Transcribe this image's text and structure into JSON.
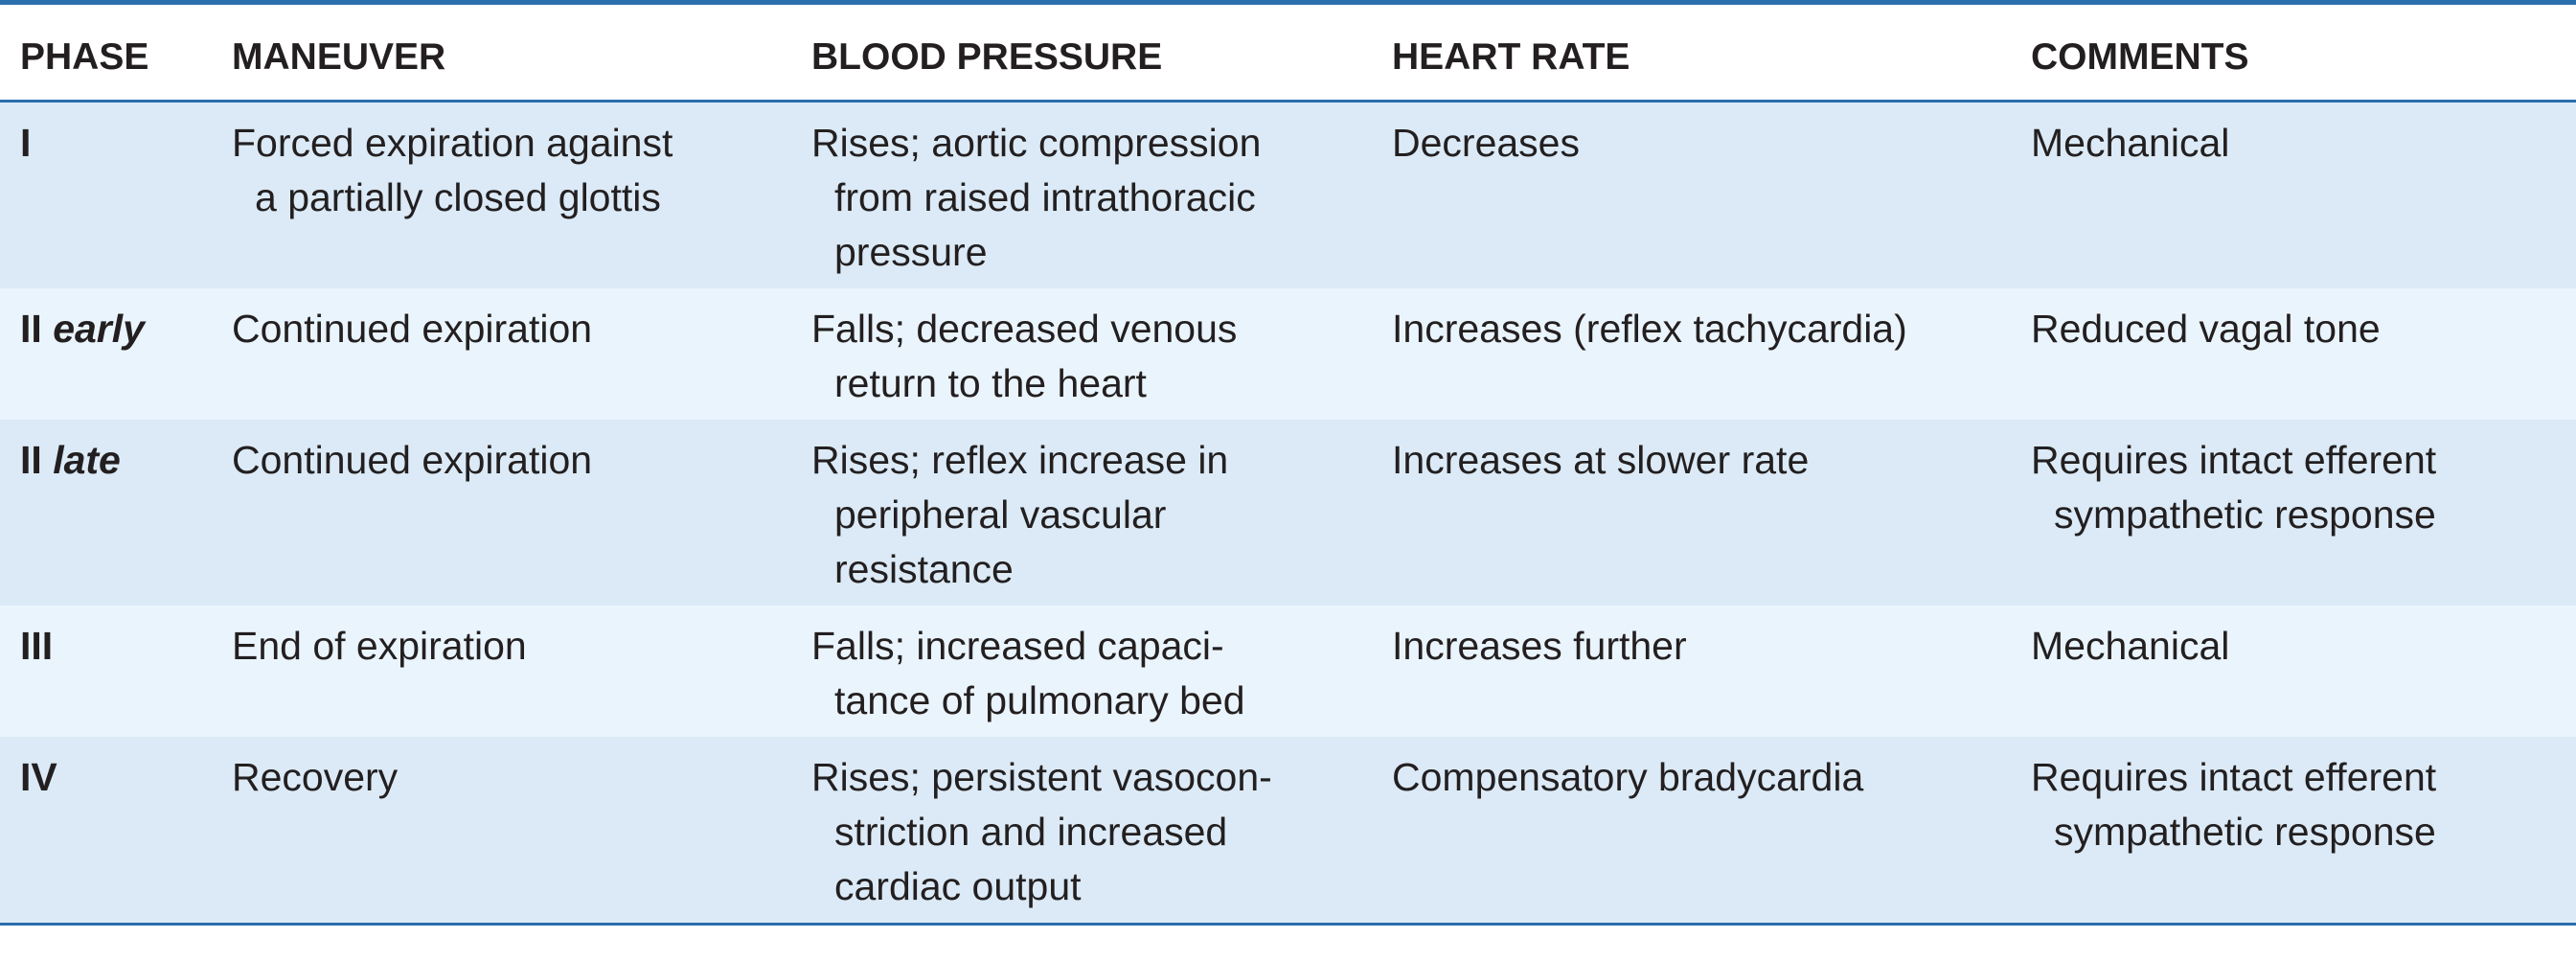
{
  "table": {
    "columns": [
      "PHASE",
      "MANEUVER",
      "BLOOD PRESSURE",
      "HEART RATE",
      "COMMENTS"
    ],
    "rows": [
      {
        "phase": [
          "I"
        ],
        "cells": [
          [
            "Forced expiration against",
            "a partially closed glottis"
          ],
          [
            "Rises; aortic compression",
            "from raised intrathoracic",
            "pressure"
          ],
          [
            "Decreases"
          ],
          [
            "Mechanical"
          ]
        ]
      },
      {
        "phase": [
          "II",
          "early"
        ],
        "cells": [
          [
            "Continued expiration"
          ],
          [
            "Falls; decreased venous",
            "return to the heart"
          ],
          [
            "Increases (reflex tachycardia)"
          ],
          [
            "Reduced vagal tone"
          ]
        ]
      },
      {
        "phase": [
          "II",
          "late"
        ],
        "cells": [
          [
            "Continued expiration"
          ],
          [
            "Rises; reflex increase in",
            "peripheral vascular",
            "resistance"
          ],
          [
            "Increases at slower rate"
          ],
          [
            "Requires intact efferent",
            "sympathetic response"
          ]
        ]
      },
      {
        "phase": [
          "III"
        ],
        "cells": [
          [
            "End of expiration"
          ],
          [
            "Falls; increased capaci-",
            "tance of pulmonary bed"
          ],
          [
            "Increases further"
          ],
          [
            "Mechanical"
          ]
        ]
      },
      {
        "phase": [
          "IV"
        ],
        "cells": [
          [
            "Recovery"
          ],
          [
            "Rises; persistent vasocon-",
            "striction and increased",
            "cardiac output"
          ],
          [
            "Compensatory bradycardia"
          ],
          [
            "Requires intact efferent",
            "sympathetic response"
          ]
        ]
      }
    ]
  }
}
